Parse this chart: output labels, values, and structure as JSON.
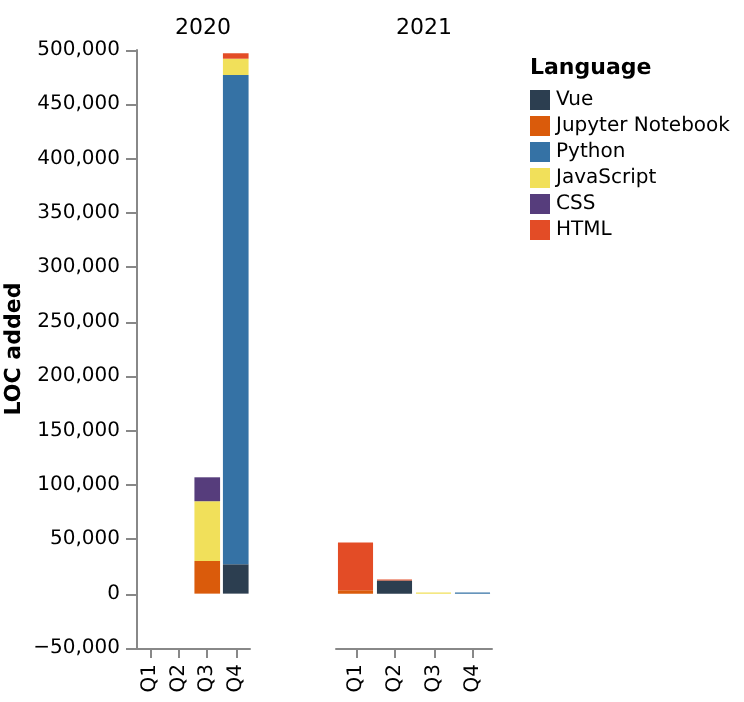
{
  "chart_data": [
    {
      "type": "bar",
      "title": "2020",
      "ylabel": "LOC added",
      "categories": [
        "Q1",
        "Q2",
        "Q3",
        "Q4"
      ],
      "stacked": true,
      "ylim": [
        -50000,
        500000
      ],
      "yticks": [
        {
          "value": -50000,
          "label": "−50,000"
        },
        {
          "value": 0,
          "label": "0"
        },
        {
          "value": 50000,
          "label": "50,000"
        },
        {
          "value": 100000,
          "label": "100,000"
        },
        {
          "value": 150000,
          "label": "150,000"
        },
        {
          "value": 200000,
          "label": "200,000"
        },
        {
          "value": 250000,
          "label": "250,000"
        },
        {
          "value": 300000,
          "label": "300,000"
        },
        {
          "value": 350000,
          "label": "350,000"
        },
        {
          "value": 400000,
          "label": "400,000"
        },
        {
          "value": 450000,
          "label": "450,000"
        },
        {
          "value": 500000,
          "label": "500,000"
        }
      ],
      "grid": false,
      "legend": false,
      "series": [
        {
          "color": "#2c3e50",
          "values": [
            null,
            null,
            null,
            27000
          ]
        },
        {
          "color": "#da5b0b",
          "values": [
            null,
            null,
            30000,
            null
          ]
        },
        {
          "color": "#3572a5",
          "values": [
            null,
            null,
            null,
            450000
          ]
        },
        {
          "color": "#f1e05a",
          "values": [
            null,
            null,
            55000,
            15000
          ]
        },
        {
          "color": "#563d7c",
          "values": [
            null,
            null,
            22000,
            null
          ]
        },
        {
          "color": "#e34c26",
          "values": [
            null,
            null,
            null,
            5000
          ]
        }
      ]
    },
    {
      "type": "bar",
      "title": "2021",
      "legend_title": "Language",
      "categories": [
        "Q1",
        "Q2",
        "Q3",
        "Q4"
      ],
      "stacked": true,
      "ylim": [
        -50000,
        500000
      ],
      "tick_labels": "x",
      "grid": false,
      "legend": "right",
      "series": [
        {
          "name": "Vue",
          "color": "#2c3e50",
          "values": [
            null,
            12000,
            null,
            null
          ]
        },
        {
          "name": "Jupyter Notebook",
          "color": "#da5b0b",
          "values": [
            3000,
            null,
            null,
            null
          ]
        },
        {
          "name": "Python",
          "color": "#3572a5",
          "values": [
            null,
            null,
            null,
            1000
          ]
        },
        {
          "name": "JavaScript",
          "color": "#f1e05a",
          "values": [
            null,
            null,
            1000,
            null
          ]
        },
        {
          "name": "CSS",
          "color": "#563d7c",
          "values": [
            null,
            null,
            null,
            null
          ]
        },
        {
          "name": "HTML",
          "color": "#e34c26",
          "values": [
            44000,
            1000,
            null,
            null
          ]
        }
      ]
    }
  ]
}
